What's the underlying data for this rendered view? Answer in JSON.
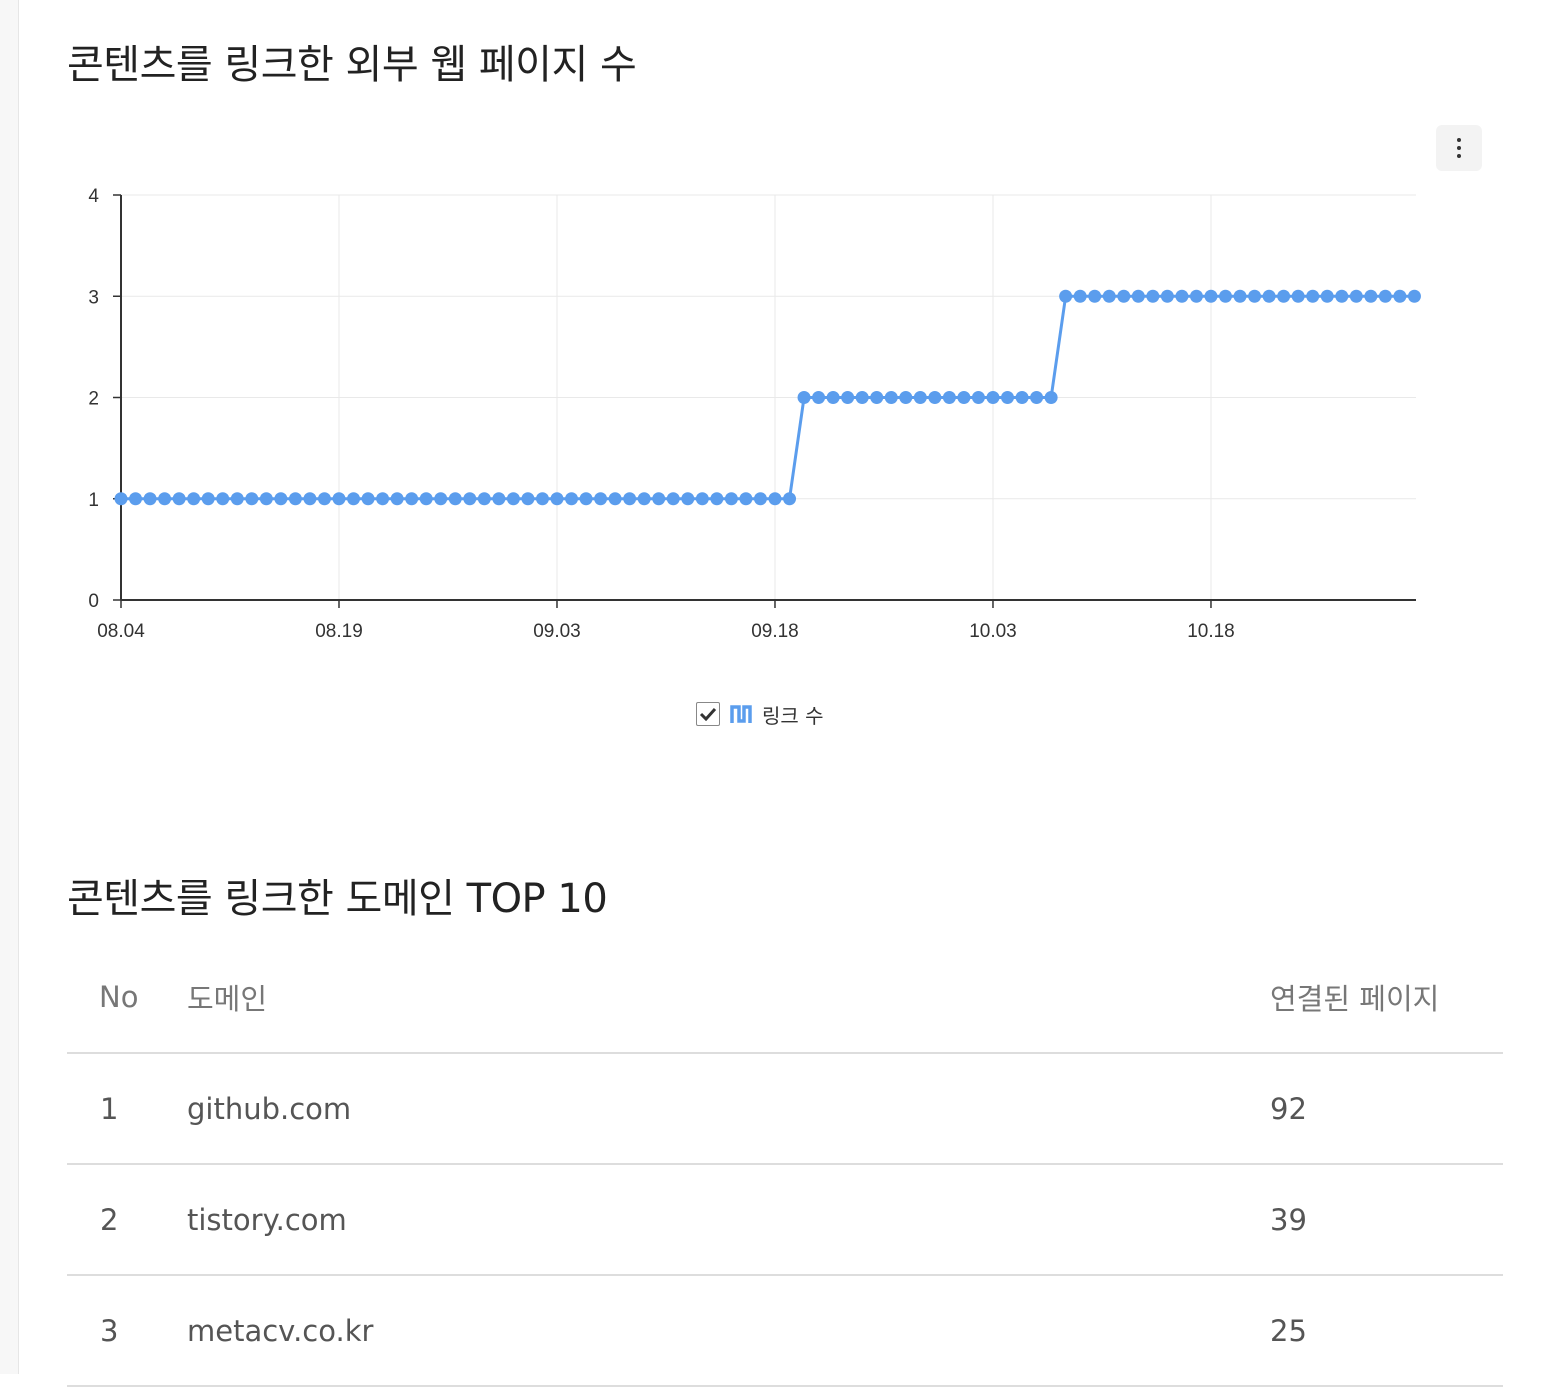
{
  "section1": {
    "title": "콘텐츠를 링크한 외부 웹 페이지 수",
    "menu_icon": "more-vertical-icon"
  },
  "chart_data": {
    "type": "line",
    "title": "콘텐츠를 링크한 외부 웹 페이지 수",
    "xlabel": "",
    "ylabel": "",
    "x_start": "08.04",
    "x_ticks": [
      "08.04",
      "08.19",
      "09.03",
      "09.18",
      "10.03",
      "10.18"
    ],
    "ylim": [
      0,
      4
    ],
    "y_ticks": [
      "0",
      "1",
      "2",
      "3",
      "4"
    ],
    "grid": true,
    "legend_position": "bottom-center",
    "series": [
      {
        "name": "링크 수",
        "color": "#5b9ded",
        "segments": [
          {
            "from": "08.04",
            "to": "09.19",
            "value": 1
          },
          {
            "from": "09.20",
            "to": "10.07",
            "value": 2
          },
          {
            "from": "10.08",
            "to": "11.01",
            "value": 3
          }
        ]
      }
    ]
  },
  "legend": {
    "checked": true,
    "label": "링크 수",
    "icon": "line-series-icon"
  },
  "section2": {
    "title": "콘텐츠를 링크한 도메인 TOP 10"
  },
  "table": {
    "headers": {
      "no": "No",
      "domain": "도메인",
      "pages": "연결된 페이지"
    },
    "rows": [
      {
        "no": "1",
        "domain": "github.com",
        "pages": "92"
      },
      {
        "no": "2",
        "domain": "tistory.com",
        "pages": "39"
      },
      {
        "no": "3",
        "domain": "metacv.co.kr",
        "pages": "25"
      }
    ]
  }
}
